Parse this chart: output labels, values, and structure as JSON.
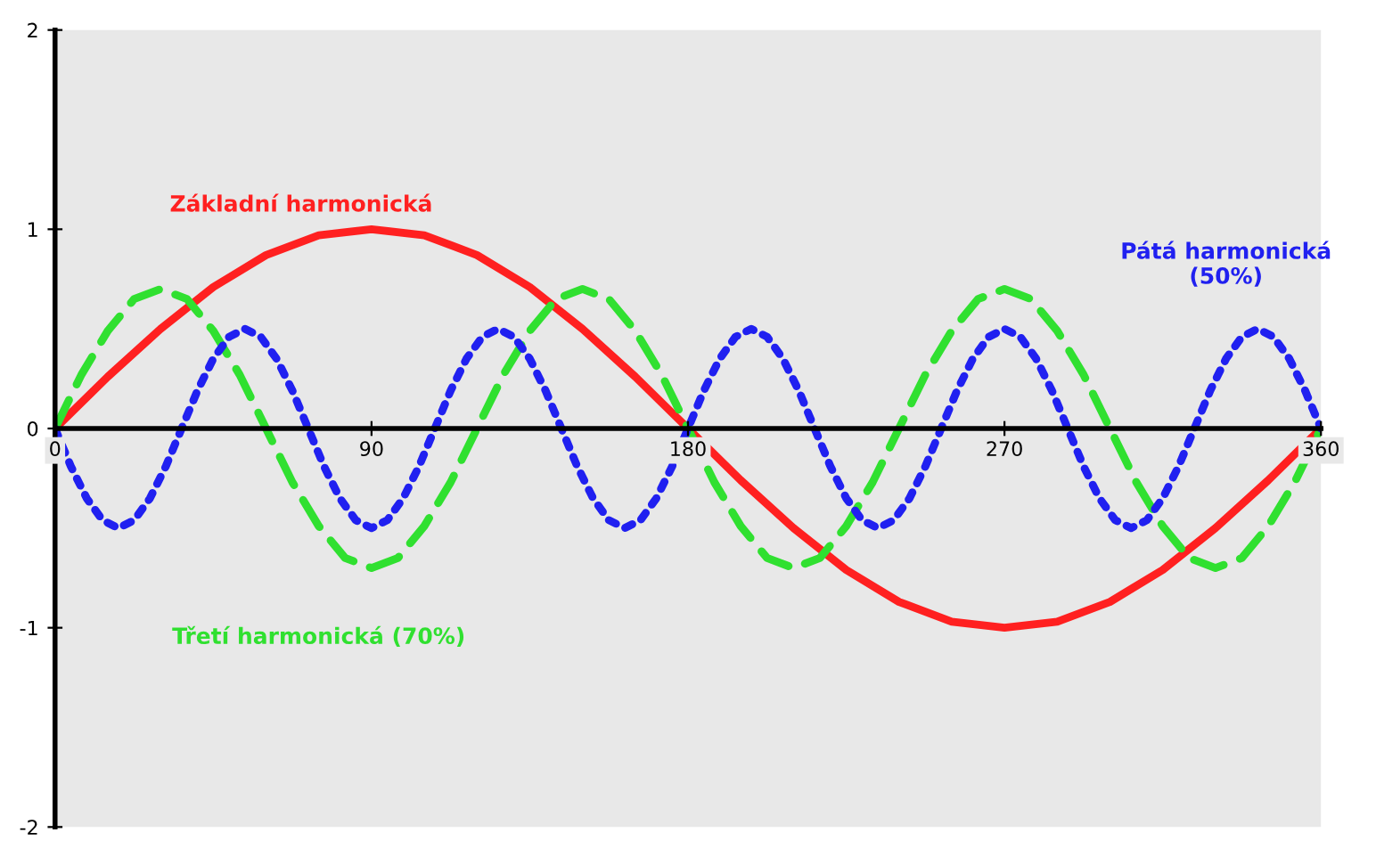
{
  "chart_data": {
    "type": "line",
    "xlim": [
      0,
      360
    ],
    "ylim": [
      -2,
      2
    ],
    "xticks": [
      0,
      90,
      180,
      270,
      360
    ],
    "yticks": [
      -2,
      -1,
      0,
      1,
      2
    ],
    "grid": false,
    "legend": false,
    "marker": "none",
    "series": [
      {
        "name": "Základní harmonická",
        "color": "#ff2020",
        "line_style": "solid",
        "x": [
          0,
          15,
          30,
          45,
          60,
          75,
          90,
          105,
          120,
          135,
          150,
          165,
          180,
          195,
          210,
          225,
          240,
          255,
          270,
          285,
          300,
          315,
          330,
          345,
          360
        ],
        "values": [
          0,
          0.26,
          0.5,
          0.71,
          0.87,
          0.97,
          1,
          0.97,
          0.87,
          0.71,
          0.5,
          0.26,
          0,
          -0.26,
          -0.5,
          -0.71,
          -0.87,
          -0.97,
          -1,
          -0.97,
          -0.87,
          -0.71,
          -0.5,
          -0.26,
          0
        ]
      },
      {
        "name": "Třetí harmonická (70%)",
        "color": "#30e030",
        "line_style": "dashed",
        "x": [
          0,
          7.5,
          15,
          22.5,
          30,
          37.5,
          45,
          52.5,
          60,
          67.5,
          75,
          82.5,
          90,
          97.5,
          105,
          112.5,
          120,
          127.5,
          135,
          142.5,
          150,
          157.5,
          165,
          172.5,
          180,
          187.5,
          195,
          202.5,
          210,
          217.5,
          225,
          232.5,
          240,
          247.5,
          255,
          262.5,
          270,
          277.5,
          285,
          292.5,
          300,
          307.5,
          315,
          322.5,
          330,
          337.5,
          345,
          352.5,
          360
        ],
        "values": [
          0,
          0.27,
          0.49,
          0.65,
          0.7,
          0.65,
          0.49,
          0.27,
          0,
          -0.27,
          -0.49,
          -0.65,
          -0.7,
          -0.65,
          -0.49,
          -0.27,
          0,
          0.27,
          0.49,
          0.65,
          0.7,
          0.65,
          0.49,
          0.27,
          0,
          -0.27,
          -0.49,
          -0.65,
          -0.7,
          -0.65,
          -0.49,
          -0.27,
          0,
          0.27,
          0.49,
          0.65,
          0.7,
          0.65,
          0.49,
          0.27,
          0,
          -0.27,
          -0.49,
          -0.65,
          -0.7,
          -0.65,
          -0.49,
          -0.27,
          0
        ]
      },
      {
        "name": "Pátá harmonická\n(50%)",
        "color": "#2020f0",
        "line_style": "dotted",
        "x": [
          0,
          4.5,
          9,
          13.5,
          18,
          22.5,
          27,
          31.5,
          36,
          40.5,
          45,
          49.5,
          54,
          58.5,
          63,
          67.5,
          72,
          76.5,
          81,
          85.5,
          90,
          94.5,
          99,
          103.5,
          108,
          112.5,
          117,
          121.5,
          126,
          130.5,
          135,
          139.5,
          144,
          148.5,
          153,
          157.5,
          162,
          166.5,
          171,
          175.5,
          180,
          184.5,
          189,
          193.5,
          198,
          202.5,
          207,
          211.5,
          216,
          220.5,
          225,
          229.5,
          234,
          238.5,
          243,
          247.5,
          252,
          256.5,
          261,
          265.5,
          270,
          274.5,
          279,
          283.5,
          288,
          292.5,
          297,
          301.5,
          306,
          310.5,
          315,
          319.5,
          324,
          328.5,
          333,
          337.5,
          342,
          346.5,
          351,
          355.5,
          360
        ],
        "values": [
          0,
          -0.19,
          -0.35,
          -0.46,
          -0.5,
          -0.46,
          -0.35,
          -0.19,
          0,
          0.19,
          0.35,
          0.46,
          0.5,
          0.46,
          0.35,
          0.19,
          0,
          -0.19,
          -0.35,
          -0.46,
          -0.5,
          -0.46,
          -0.35,
          -0.19,
          0,
          0.19,
          0.35,
          0.46,
          0.5,
          0.46,
          0.35,
          0.19,
          0,
          -0.19,
          -0.35,
          -0.46,
          -0.5,
          -0.46,
          -0.35,
          -0.19,
          0,
          0.19,
          0.35,
          0.46,
          0.5,
          0.46,
          0.35,
          0.19,
          0,
          -0.19,
          -0.35,
          -0.46,
          -0.5,
          -0.46,
          -0.35,
          -0.19,
          0,
          0.19,
          0.35,
          0.46,
          0.5,
          0.46,
          0.35,
          0.19,
          0,
          -0.19,
          -0.35,
          -0.46,
          -0.5,
          -0.46,
          -0.35,
          -0.19,
          0,
          0.19,
          0.35,
          0.46,
          0.5,
          0.46,
          0.35,
          0.19,
          0
        ]
      }
    ]
  }
}
